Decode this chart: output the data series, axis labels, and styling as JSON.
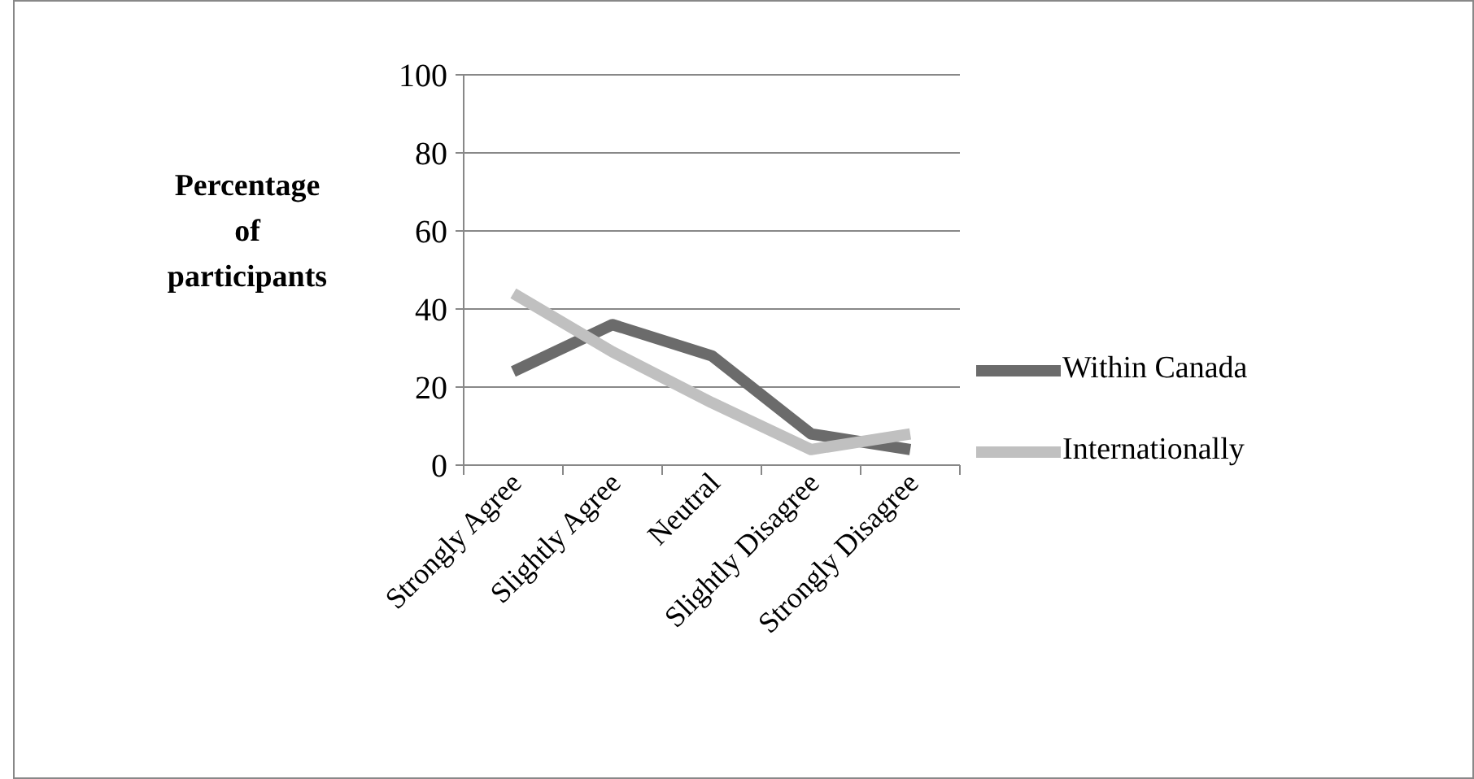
{
  "chart_data": {
    "type": "line",
    "ylabel": "Percentage of participants",
    "categories": [
      "Strongly Agree",
      "Slightly Agree",
      "Neutral",
      "Slightly Disagree",
      "Strongly Disagree"
    ],
    "series": [
      {
        "name": "Within Canada",
        "color": "#6b6b6b",
        "values": [
          24,
          36,
          28,
          8,
          4
        ]
      },
      {
        "name": "Internationally",
        "color": "#c0c0c0",
        "values": [
          44,
          29,
          16,
          4,
          8
        ]
      }
    ],
    "ylim": [
      0,
      100
    ],
    "yticks": [
      0,
      20,
      40,
      60,
      80,
      100
    ],
    "grid": "y",
    "legend": "right",
    "marker": "none",
    "line_style": "solid"
  }
}
